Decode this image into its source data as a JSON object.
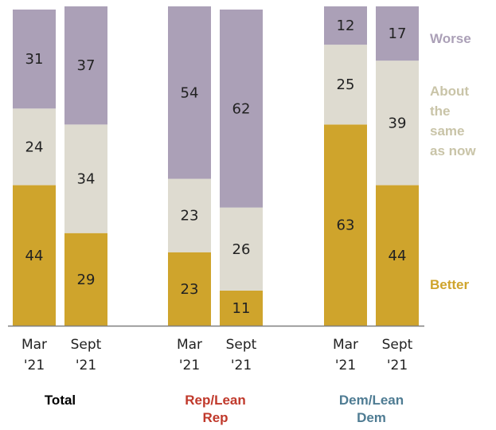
{
  "chart_data": {
    "type": "bar",
    "stacked": true,
    "ylim": [
      0,
      100
    ],
    "segment_order": [
      "Better",
      "About the same as now",
      "Worse"
    ],
    "colors": {
      "Better": "#cfa42c",
      "About the same as now": "#dedbd0",
      "Worse": "#aba0b7",
      "Total": "#000000",
      "Rep/Lean Rep": "#c0392b",
      "Dem/Lean Dem": "#4f7c93"
    },
    "legend": [
      {
        "name": "Worse",
        "lines": [
          "Worse"
        ],
        "color": "#aba0b7"
      },
      {
        "name": "About the same as now",
        "lines": [
          "About",
          "the",
          "same",
          "as now"
        ],
        "color": "#c9c4a8"
      },
      {
        "name": "Better",
        "lines": [
          "Better"
        ],
        "color": "#cfa42c"
      }
    ],
    "groups": [
      {
        "name": "Total",
        "label_lines": [
          "Total"
        ],
        "label_color": "#000000",
        "bars": [
          {
            "tick_lines": [
              "Mar",
              "'21"
            ],
            "values": {
              "Better": 44,
              "About the same as now": 24,
              "Worse": 31
            }
          },
          {
            "tick_lines": [
              "Sept",
              "'21"
            ],
            "values": {
              "Better": 29,
              "About the same as now": 34,
              "Worse": 37
            }
          }
        ]
      },
      {
        "name": "Rep/Lean Rep",
        "label_lines": [
          "Rep/Lean",
          "Rep"
        ],
        "label_color": "#c0392b",
        "bars": [
          {
            "tick_lines": [
              "Mar",
              "'21"
            ],
            "values": {
              "Better": 23,
              "About the same as now": 23,
              "Worse": 54
            }
          },
          {
            "tick_lines": [
              "Sept",
              "'21"
            ],
            "values": {
              "Better": 11,
              "About the same as now": 26,
              "Worse": 62
            }
          }
        ]
      },
      {
        "name": "Dem/Lean Dem",
        "label_lines": [
          "Dem/Lean",
          "Dem"
        ],
        "label_color": "#4f7c93",
        "bars": [
          {
            "tick_lines": [
              "Mar",
              "'21"
            ],
            "values": {
              "Better": 63,
              "About the same as now": 25,
              "Worse": 12
            }
          },
          {
            "tick_lines": [
              "Sept",
              "'21"
            ],
            "values": {
              "Better": 44,
              "About the same as now": 39,
              "Worse": 17
            }
          }
        ]
      }
    ]
  }
}
